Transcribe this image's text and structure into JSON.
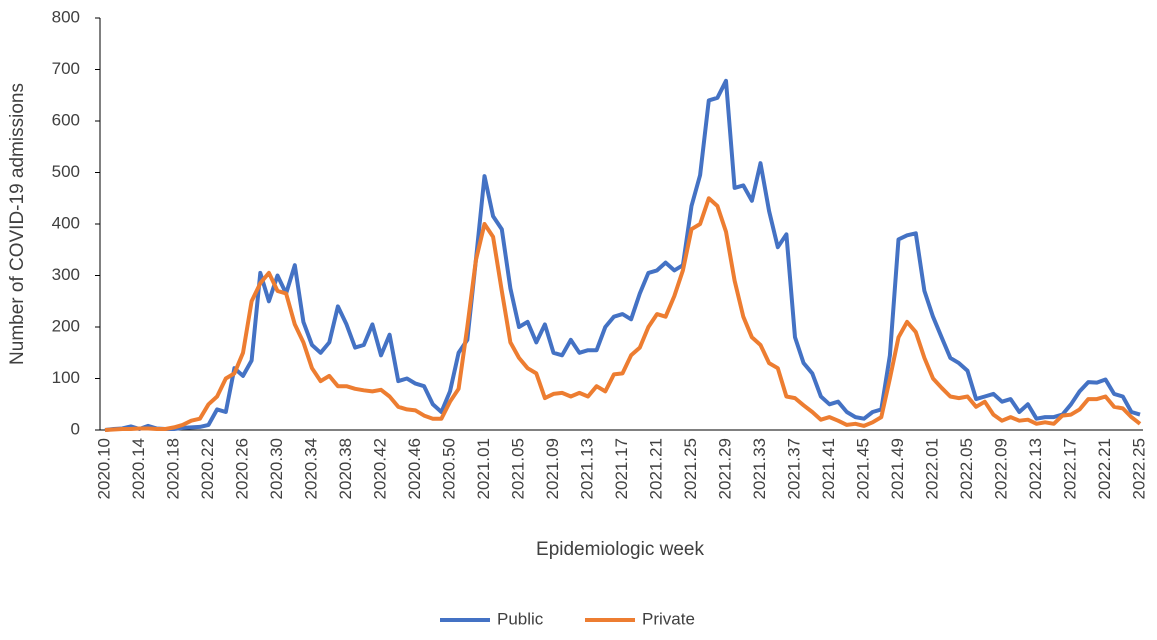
{
  "chart_data": {
    "type": "line",
    "x_label": "Epidemiologic week",
    "y_label": "Number of COVID-19 admissions",
    "categories": [
      "2020.10",
      null,
      null,
      null,
      "2020.14",
      null,
      null,
      null,
      "2020.18",
      null,
      null,
      null,
      "2020.22",
      null,
      null,
      null,
      "2020.26",
      null,
      null,
      null,
      "2020.30",
      null,
      null,
      null,
      "2020.34",
      null,
      null,
      null,
      "2020.38",
      null,
      null,
      null,
      "2020.42",
      null,
      null,
      null,
      "2020.46",
      null,
      null,
      null,
      "2020.50",
      null,
      null,
      null,
      "2021.01",
      null,
      null,
      null,
      "2021.05",
      null,
      null,
      null,
      "2021.09",
      null,
      null,
      null,
      "2021.13",
      null,
      null,
      null,
      "2021.17",
      null,
      null,
      null,
      "2021.21",
      null,
      null,
      null,
      "2021.25",
      null,
      null,
      null,
      "2021.29",
      null,
      null,
      null,
      "2021.33",
      null,
      null,
      null,
      "2021.37",
      null,
      null,
      null,
      "2021.41",
      null,
      null,
      null,
      "2021.45",
      null,
      null,
      null,
      "2021.49",
      null,
      null,
      null,
      "2022.01",
      null,
      null,
      null,
      "2022.05",
      null,
      null,
      null,
      "2022.09",
      null,
      null,
      null,
      "2022.13",
      null,
      null,
      null,
      "2022.17",
      null,
      null,
      null,
      "2022.21",
      null,
      null,
      null,
      "2022.25"
    ],
    "series": [
      {
        "name": "Public",
        "color": "#4472c4",
        "values": [
          0,
          2,
          3,
          7,
          2,
          8,
          3,
          2,
          2,
          4,
          5,
          6,
          10,
          40,
          35,
          120,
          105,
          135,
          305,
          250,
          300,
          265,
          320,
          210,
          165,
          150,
          170,
          240,
          205,
          160,
          165,
          205,
          145,
          185,
          95,
          100,
          90,
          85,
          50,
          35,
          75,
          150,
          175,
          330,
          493,
          415,
          390,
          275,
          200,
          210,
          170,
          205,
          150,
          145,
          175,
          150,
          155,
          155,
          200,
          220,
          225,
          215,
          265,
          305,
          310,
          325,
          310,
          320,
          435,
          495,
          640,
          645,
          678,
          470,
          475,
          445,
          518,
          425,
          355,
          380,
          180,
          130,
          110,
          65,
          50,
          55,
          35,
          25,
          22,
          35,
          40,
          145,
          370,
          378,
          382,
          270,
          220,
          180,
          140,
          130,
          115,
          60,
          65,
          70,
          55,
          60,
          35,
          50,
          22,
          25,
          25,
          30,
          50,
          75,
          93,
          92,
          98,
          70,
          65,
          35,
          30
        ]
      },
      {
        "name": "Private",
        "color": "#ed7d31",
        "values": [
          0,
          1,
          2,
          2,
          3,
          3,
          2,
          2,
          5,
          10,
          18,
          22,
          50,
          65,
          100,
          110,
          150,
          250,
          285,
          305,
          270,
          265,
          205,
          170,
          120,
          95,
          105,
          85,
          85,
          80,
          77,
          75,
          78,
          65,
          45,
          40,
          38,
          28,
          22,
          22,
          55,
          80,
          200,
          330,
          400,
          375,
          270,
          170,
          140,
          120,
          110,
          62,
          70,
          72,
          65,
          72,
          65,
          85,
          75,
          108,
          110,
          145,
          160,
          200,
          225,
          220,
          260,
          310,
          390,
          400,
          450,
          435,
          385,
          290,
          220,
          180,
          165,
          130,
          120,
          65,
          62,
          48,
          35,
          20,
          25,
          18,
          10,
          12,
          8,
          15,
          25,
          100,
          180,
          210,
          190,
          140,
          100,
          82,
          65,
          62,
          65,
          45,
          55,
          30,
          18,
          25,
          18,
          20,
          12,
          15,
          12,
          28,
          30,
          40,
          60,
          60,
          65,
          45,
          42,
          25,
          12
        ]
      }
    ],
    "ylim": [
      0,
      800
    ],
    "yticks": [
      0,
      100,
      200,
      300,
      400,
      500,
      600,
      700,
      800
    ],
    "legend": "bottom"
  }
}
